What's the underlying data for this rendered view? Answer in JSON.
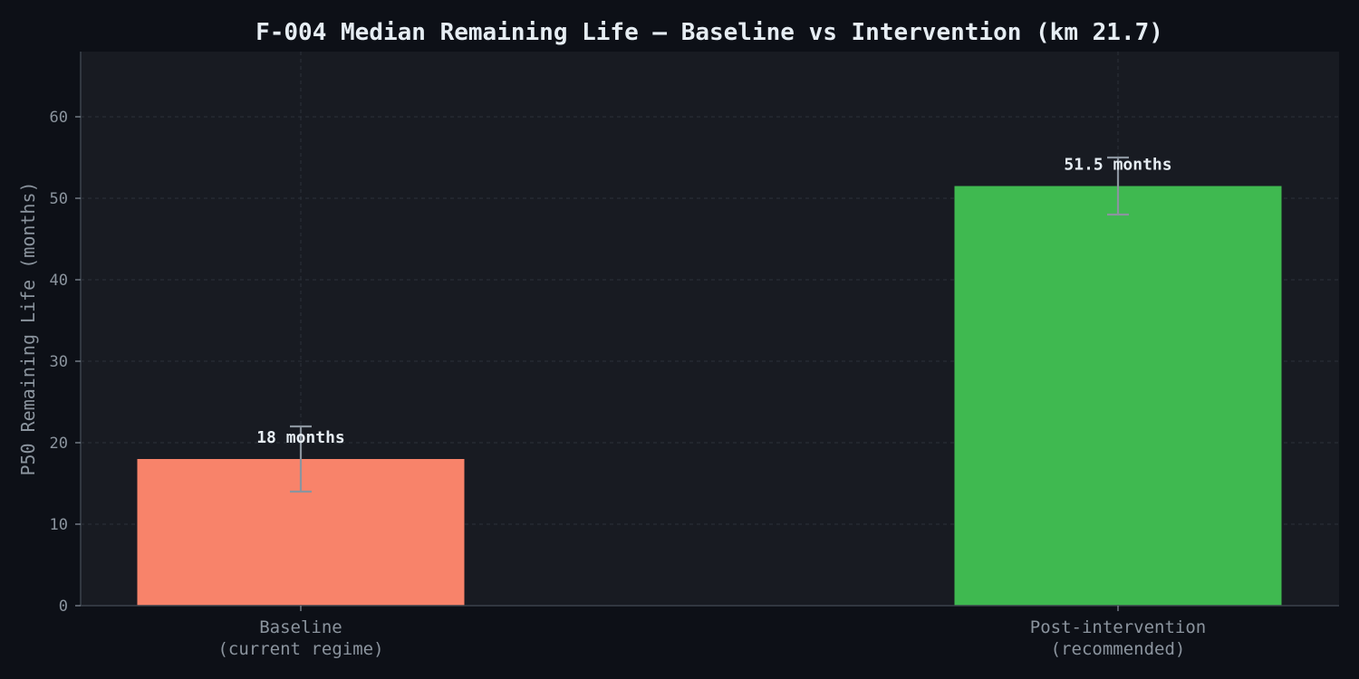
{
  "colors": {
    "page_background": "#0d1017",
    "plot_background": "#181b22",
    "baseline_bar": "#f8836a",
    "intervention_bar": "#3fb950",
    "error_bar": "#8b949e",
    "text_primary": "#e6edf3",
    "text_secondary": "#8b949e"
  },
  "chart_data": {
    "type": "bar",
    "title": "F-004 Median Remaining Life — Baseline vs Intervention (km 21.7)",
    "xlabel": "",
    "ylabel": "P50 Remaining Life (months)",
    "ylim": [
      0,
      68
    ],
    "yticks": [
      0,
      10,
      20,
      30,
      40,
      50,
      60
    ],
    "grid": true,
    "categories": [
      [
        "Baseline",
        "(current regime)"
      ],
      [
        "Post-intervention",
        "(recommended)"
      ]
    ],
    "values": [
      18,
      51.5
    ],
    "error_low": [
      14,
      48
    ],
    "error_high": [
      22,
      55
    ],
    "data_labels": [
      "18 months",
      "51.5 months"
    ],
    "bar_colors": [
      "#f8836a",
      "#3fb950"
    ]
  }
}
